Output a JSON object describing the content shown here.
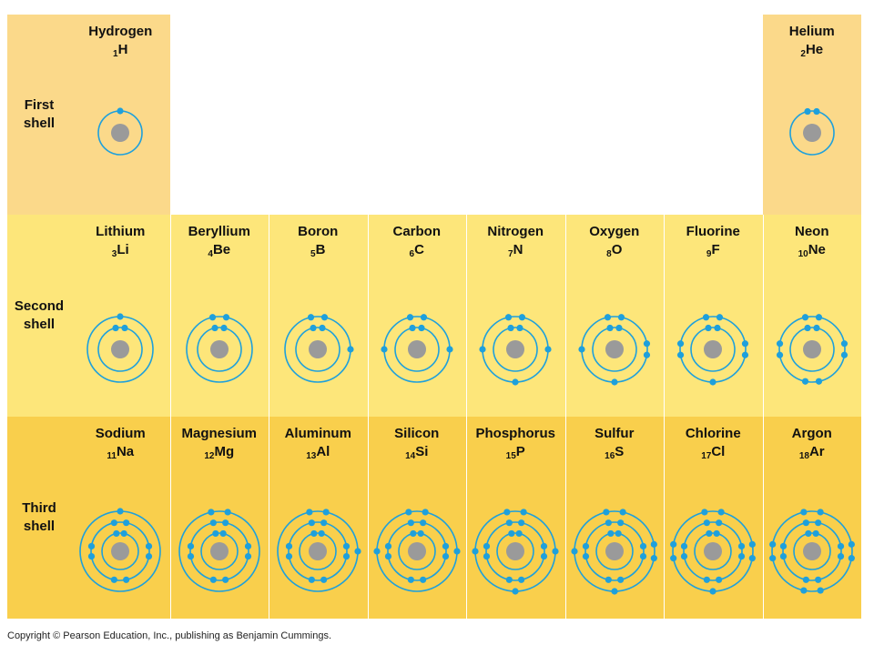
{
  "shells": [
    {
      "label_line1": "First",
      "label_line2": "shell"
    },
    {
      "label_line1": "Second",
      "label_line2": "shell"
    },
    {
      "label_line1": "Third",
      "label_line2": "shell"
    }
  ],
  "elements": [
    {
      "name": "Hydrogen",
      "number": "1",
      "symbol": "H",
      "shell": 1,
      "col": 0,
      "shells_electrons": [
        1
      ]
    },
    {
      "name": "Helium",
      "number": "2",
      "symbol": "He",
      "shell": 1,
      "col": 7,
      "shells_electrons": [
        2
      ]
    },
    {
      "name": "Lithium",
      "number": "3",
      "symbol": "Li",
      "shell": 2,
      "col": 0,
      "shells_electrons": [
        2,
        1
      ]
    },
    {
      "name": "Beryllium",
      "number": "4",
      "symbol": "Be",
      "shell": 2,
      "col": 1,
      "shells_electrons": [
        2,
        2
      ]
    },
    {
      "name": "Boron",
      "number": "5",
      "symbol": "B",
      "shell": 2,
      "col": 2,
      "shells_electrons": [
        2,
        3
      ]
    },
    {
      "name": "Carbon",
      "number": "6",
      "symbol": "C",
      "shell": 2,
      "col": 3,
      "shells_electrons": [
        2,
        4
      ]
    },
    {
      "name": "Nitrogen",
      "number": "7",
      "symbol": "N",
      "shell": 2,
      "col": 4,
      "shells_electrons": [
        2,
        5
      ]
    },
    {
      "name": "Oxygen",
      "number": "8",
      "symbol": "O",
      "shell": 2,
      "col": 5,
      "shells_electrons": [
        2,
        6
      ]
    },
    {
      "name": "Fluorine",
      "number": "9",
      "symbol": "F",
      "shell": 2,
      "col": 6,
      "shells_electrons": [
        2,
        7
      ]
    },
    {
      "name": "Neon",
      "number": "10",
      "symbol": "Ne",
      "shell": 2,
      "col": 7,
      "shells_electrons": [
        2,
        8
      ]
    },
    {
      "name": "Sodium",
      "number": "11",
      "symbol": "Na",
      "shell": 3,
      "col": 0,
      "shells_electrons": [
        2,
        8,
        1
      ]
    },
    {
      "name": "Magnesium",
      "number": "12",
      "symbol": "Mg",
      "shell": 3,
      "col": 1,
      "shells_electrons": [
        2,
        8,
        2
      ]
    },
    {
      "name": "Aluminum",
      "number": "13",
      "symbol": "Al",
      "shell": 3,
      "col": 2,
      "shells_electrons": [
        2,
        8,
        3
      ]
    },
    {
      "name": "Silicon",
      "number": "14",
      "symbol": "Si",
      "shell": 3,
      "col": 3,
      "shells_electrons": [
        2,
        8,
        4
      ]
    },
    {
      "name": "Phosphorus",
      "number": "15",
      "symbol": "P",
      "shell": 3,
      "col": 4,
      "shells_electrons": [
        2,
        8,
        5
      ]
    },
    {
      "name": "Sulfur",
      "number": "16",
      "symbol": "S",
      "shell": 3,
      "col": 5,
      "shells_electrons": [
        2,
        8,
        6
      ]
    },
    {
      "name": "Chlorine",
      "number": "17",
      "symbol": "Cl",
      "shell": 3,
      "col": 6,
      "shells_electrons": [
        2,
        8,
        7
      ]
    },
    {
      "name": "Argon",
      "number": "18",
      "symbol": "Ar",
      "shell": 3,
      "col": 7,
      "shells_electrons": [
        2,
        8,
        8
      ]
    }
  ],
  "colors": {
    "first_shell_bg": "#fbd98a",
    "second_shell_bg": "#fde67a",
    "third_shell_bg": "#f9cf4c",
    "electron": "#1ea0dc",
    "orbit": "#1ea0dc",
    "nucleus": "#9a9a9a"
  },
  "copyright": "Copyright © Pearson Education, Inc., publishing as Benjamin Cummings."
}
